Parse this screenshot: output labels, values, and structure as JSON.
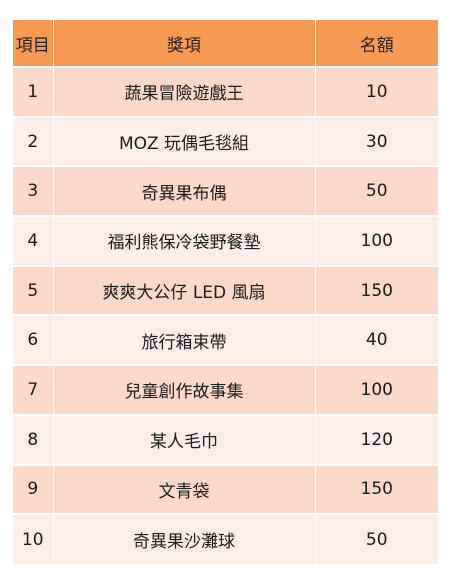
{
  "table": {
    "headers": [
      "項目",
      "獎項",
      "名額"
    ],
    "rows": [
      [
        "1",
        "蔬果冒險遊戲王",
        "10"
      ],
      [
        "2",
        "MOZ 玩偶毛毯組",
        "30"
      ],
      [
        "3",
        "奇異果布偶",
        "50"
      ],
      [
        "4",
        "福利熊保冷袋野餐墊",
        "100"
      ],
      [
        "5",
        "爽爽大公仔 LED 風扇",
        "150"
      ],
      [
        "6",
        "旅行箱束帶",
        "40"
      ],
      [
        "7",
        "兒童創作故事集",
        "100"
      ],
      [
        "8",
        "某人毛巾",
        "120"
      ],
      [
        "9",
        "文青袋",
        "150"
      ],
      [
        "10",
        "奇異果沙灘球",
        "50"
      ]
    ]
  },
  "colors": {
    "header_bg": "#f79a54",
    "row_odd_bg": "#fcd9c9",
    "row_even_bg": "#fdeee7",
    "border": "#ffffff"
  }
}
